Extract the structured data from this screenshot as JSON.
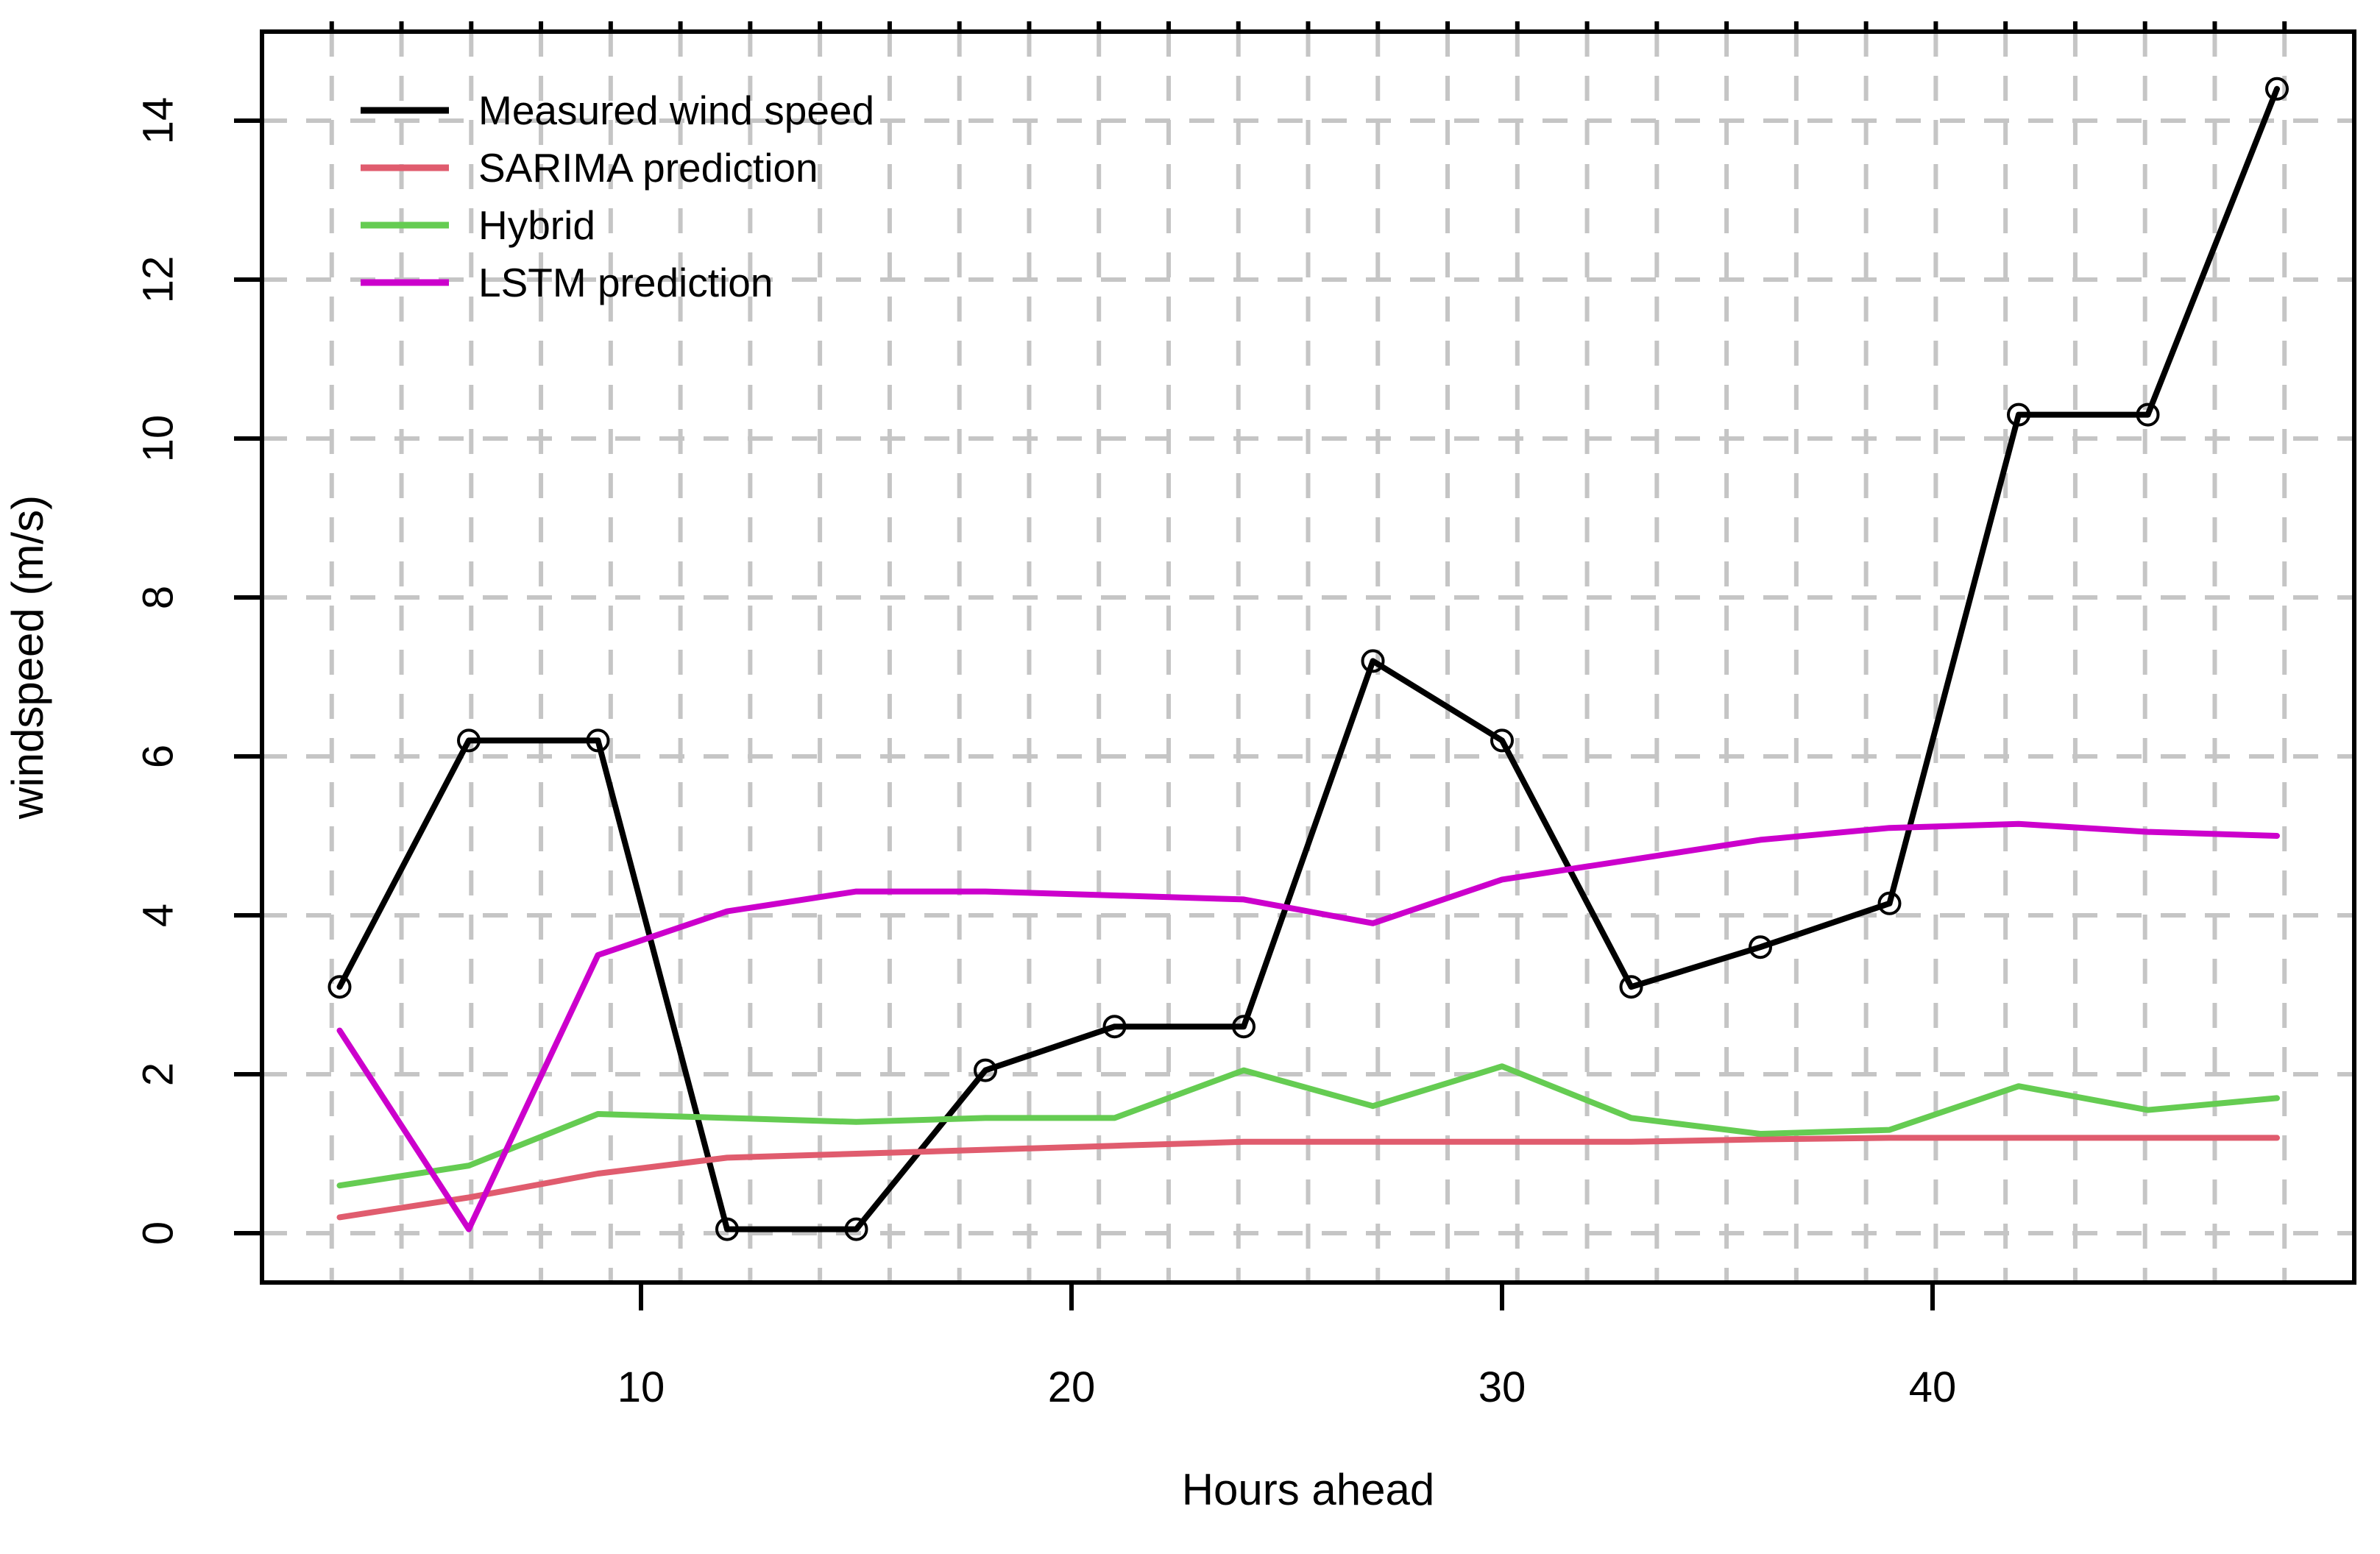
{
  "chart_data": {
    "type": "line",
    "title": "",
    "xlabel": "Hours ahead",
    "ylabel": "windspeed (m/s)",
    "x": [
      3,
      6,
      9,
      12,
      15,
      18,
      21,
      24,
      27,
      30,
      33,
      36,
      39,
      42,
      45,
      48
    ],
    "x_ticks": [
      10,
      20,
      30,
      40
    ],
    "y_ticks": [
      0,
      2,
      4,
      6,
      8,
      10,
      12,
      14
    ],
    "xlim": [
      1.2,
      49.8
    ],
    "ylim": [
      -0.62,
      15.1
    ],
    "grid": true,
    "grid_style": "dashed",
    "vertical_grid_divisions": 30,
    "legend_position": "top-left",
    "series": [
      {
        "name": "Measured wind speed",
        "color": "#000000",
        "marker": "open-circle",
        "values": [
          3.1,
          6.2,
          6.2,
          0.05,
          0.05,
          2.05,
          2.6,
          2.6,
          7.2,
          6.2,
          3.1,
          3.6,
          4.15,
          10.3,
          10.3,
          14.4
        ]
      },
      {
        "name": "SARIMA prediction",
        "color": "#e05c6e",
        "marker": "none",
        "values": [
          0.2,
          0.45,
          0.75,
          0.95,
          1.0,
          1.05,
          1.1,
          1.15,
          1.15,
          1.15,
          1.15,
          1.18,
          1.2,
          1.2,
          1.2,
          1.2
        ]
      },
      {
        "name": "Hybrid",
        "color": "#65cc52",
        "marker": "none",
        "values": [
          0.6,
          0.85,
          1.5,
          1.45,
          1.4,
          1.45,
          1.45,
          2.05,
          1.6,
          2.1,
          1.45,
          1.25,
          1.3,
          1.85,
          1.55,
          1.7
        ]
      },
      {
        "name": "LSTM prediction",
        "color": "#cc00cc",
        "marker": "none",
        "values": [
          2.55,
          0.05,
          3.5,
          4.05,
          4.3,
          4.3,
          4.25,
          4.2,
          3.9,
          4.45,
          4.7,
          4.95,
          5.1,
          5.15,
          5.05,
          5.0
        ]
      }
    ]
  },
  "colors": {
    "background": "#ffffff",
    "axis": "#000000",
    "grid": "#c5c5c5",
    "text": "#000000"
  }
}
